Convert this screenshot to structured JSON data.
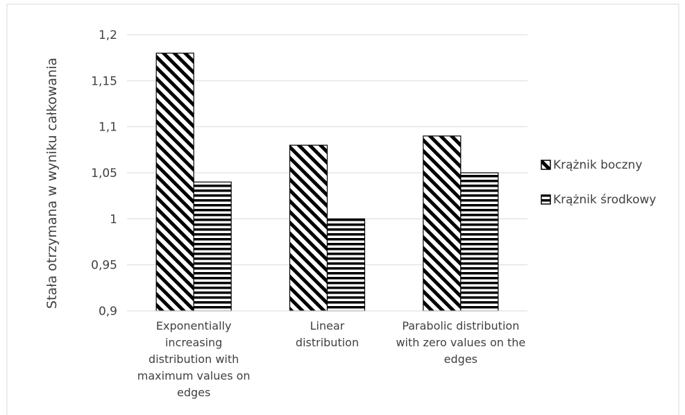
{
  "chart_data": {
    "type": "bar",
    "categories": [
      "Exponentially increasing distribution with maximum values on edges",
      "Linear distribution",
      "Parabolic distribution with zero values on the edges"
    ],
    "series": [
      {
        "name": "Krążnik boczny",
        "values": [
          1.18,
          1.08,
          1.09
        ],
        "pattern": "diagonal"
      },
      {
        "name": "Krążnik środkowy",
        "values": [
          1.04,
          1.0,
          1.05
        ],
        "pattern": "horizontal"
      }
    ],
    "ylabel": "Stała otrzymana w wyniku całkowania",
    "xlabel": "",
    "ylim": [
      0.9,
      1.2
    ],
    "yticks": [
      "0,9",
      "0,95",
      "1",
      "1,05",
      "1,1",
      "1,15",
      "1,2"
    ],
    "grid": true,
    "legend_position": "right",
    "colors": {
      "bar_stroke": "#000000",
      "hatch": "#000000",
      "grid": "#d9d9d9",
      "text": "#404040"
    }
  }
}
